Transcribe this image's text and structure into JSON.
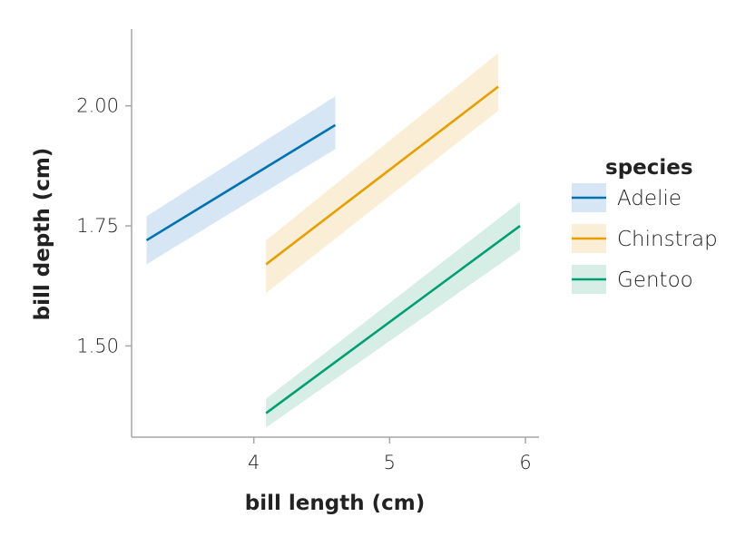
{
  "chart_data": {
    "type": "line",
    "xlabel": "bill length (cm)",
    "ylabel": "bill depth (cm)",
    "xlim": [
      3.1,
      6.1
    ],
    "ylim": [
      1.31,
      2.16
    ],
    "x_ticks": [
      {
        "value": 4,
        "label": "4"
      },
      {
        "value": 5,
        "label": "5"
      },
      {
        "value": 6,
        "label": "6"
      }
    ],
    "y_ticks": [
      {
        "value": 1.5,
        "label": "1.50"
      },
      {
        "value": 1.75,
        "label": "1.75"
      },
      {
        "value": 2.0,
        "label": "2.00"
      }
    ],
    "grid": false,
    "legend": {
      "title": "species",
      "position": "right"
    },
    "series": [
      {
        "name": "Adelie",
        "color": "#0072B2",
        "band_color": "#d6e6f4",
        "x": [
          3.21,
          4.6
        ],
        "y": [
          1.72,
          1.96
        ],
        "band_lower": [
          1.67,
          1.91
        ],
        "band_upper": [
          1.77,
          2.02
        ]
      },
      {
        "name": "Chinstrap",
        "color": "#E69F00",
        "band_color": "#fbeed6",
        "x": [
          4.09,
          5.8
        ],
        "y": [
          1.67,
          2.04
        ],
        "band_lower": [
          1.61,
          1.99
        ],
        "band_upper": [
          1.72,
          2.11
        ]
      },
      {
        "name": "Gentoo",
        "color": "#009E73",
        "band_color": "#d6eee5",
        "x": [
          4.09,
          5.96
        ],
        "y": [
          1.36,
          1.75
        ],
        "band_lower": [
          1.33,
          1.7
        ],
        "band_upper": [
          1.39,
          1.8
        ]
      }
    ]
  }
}
